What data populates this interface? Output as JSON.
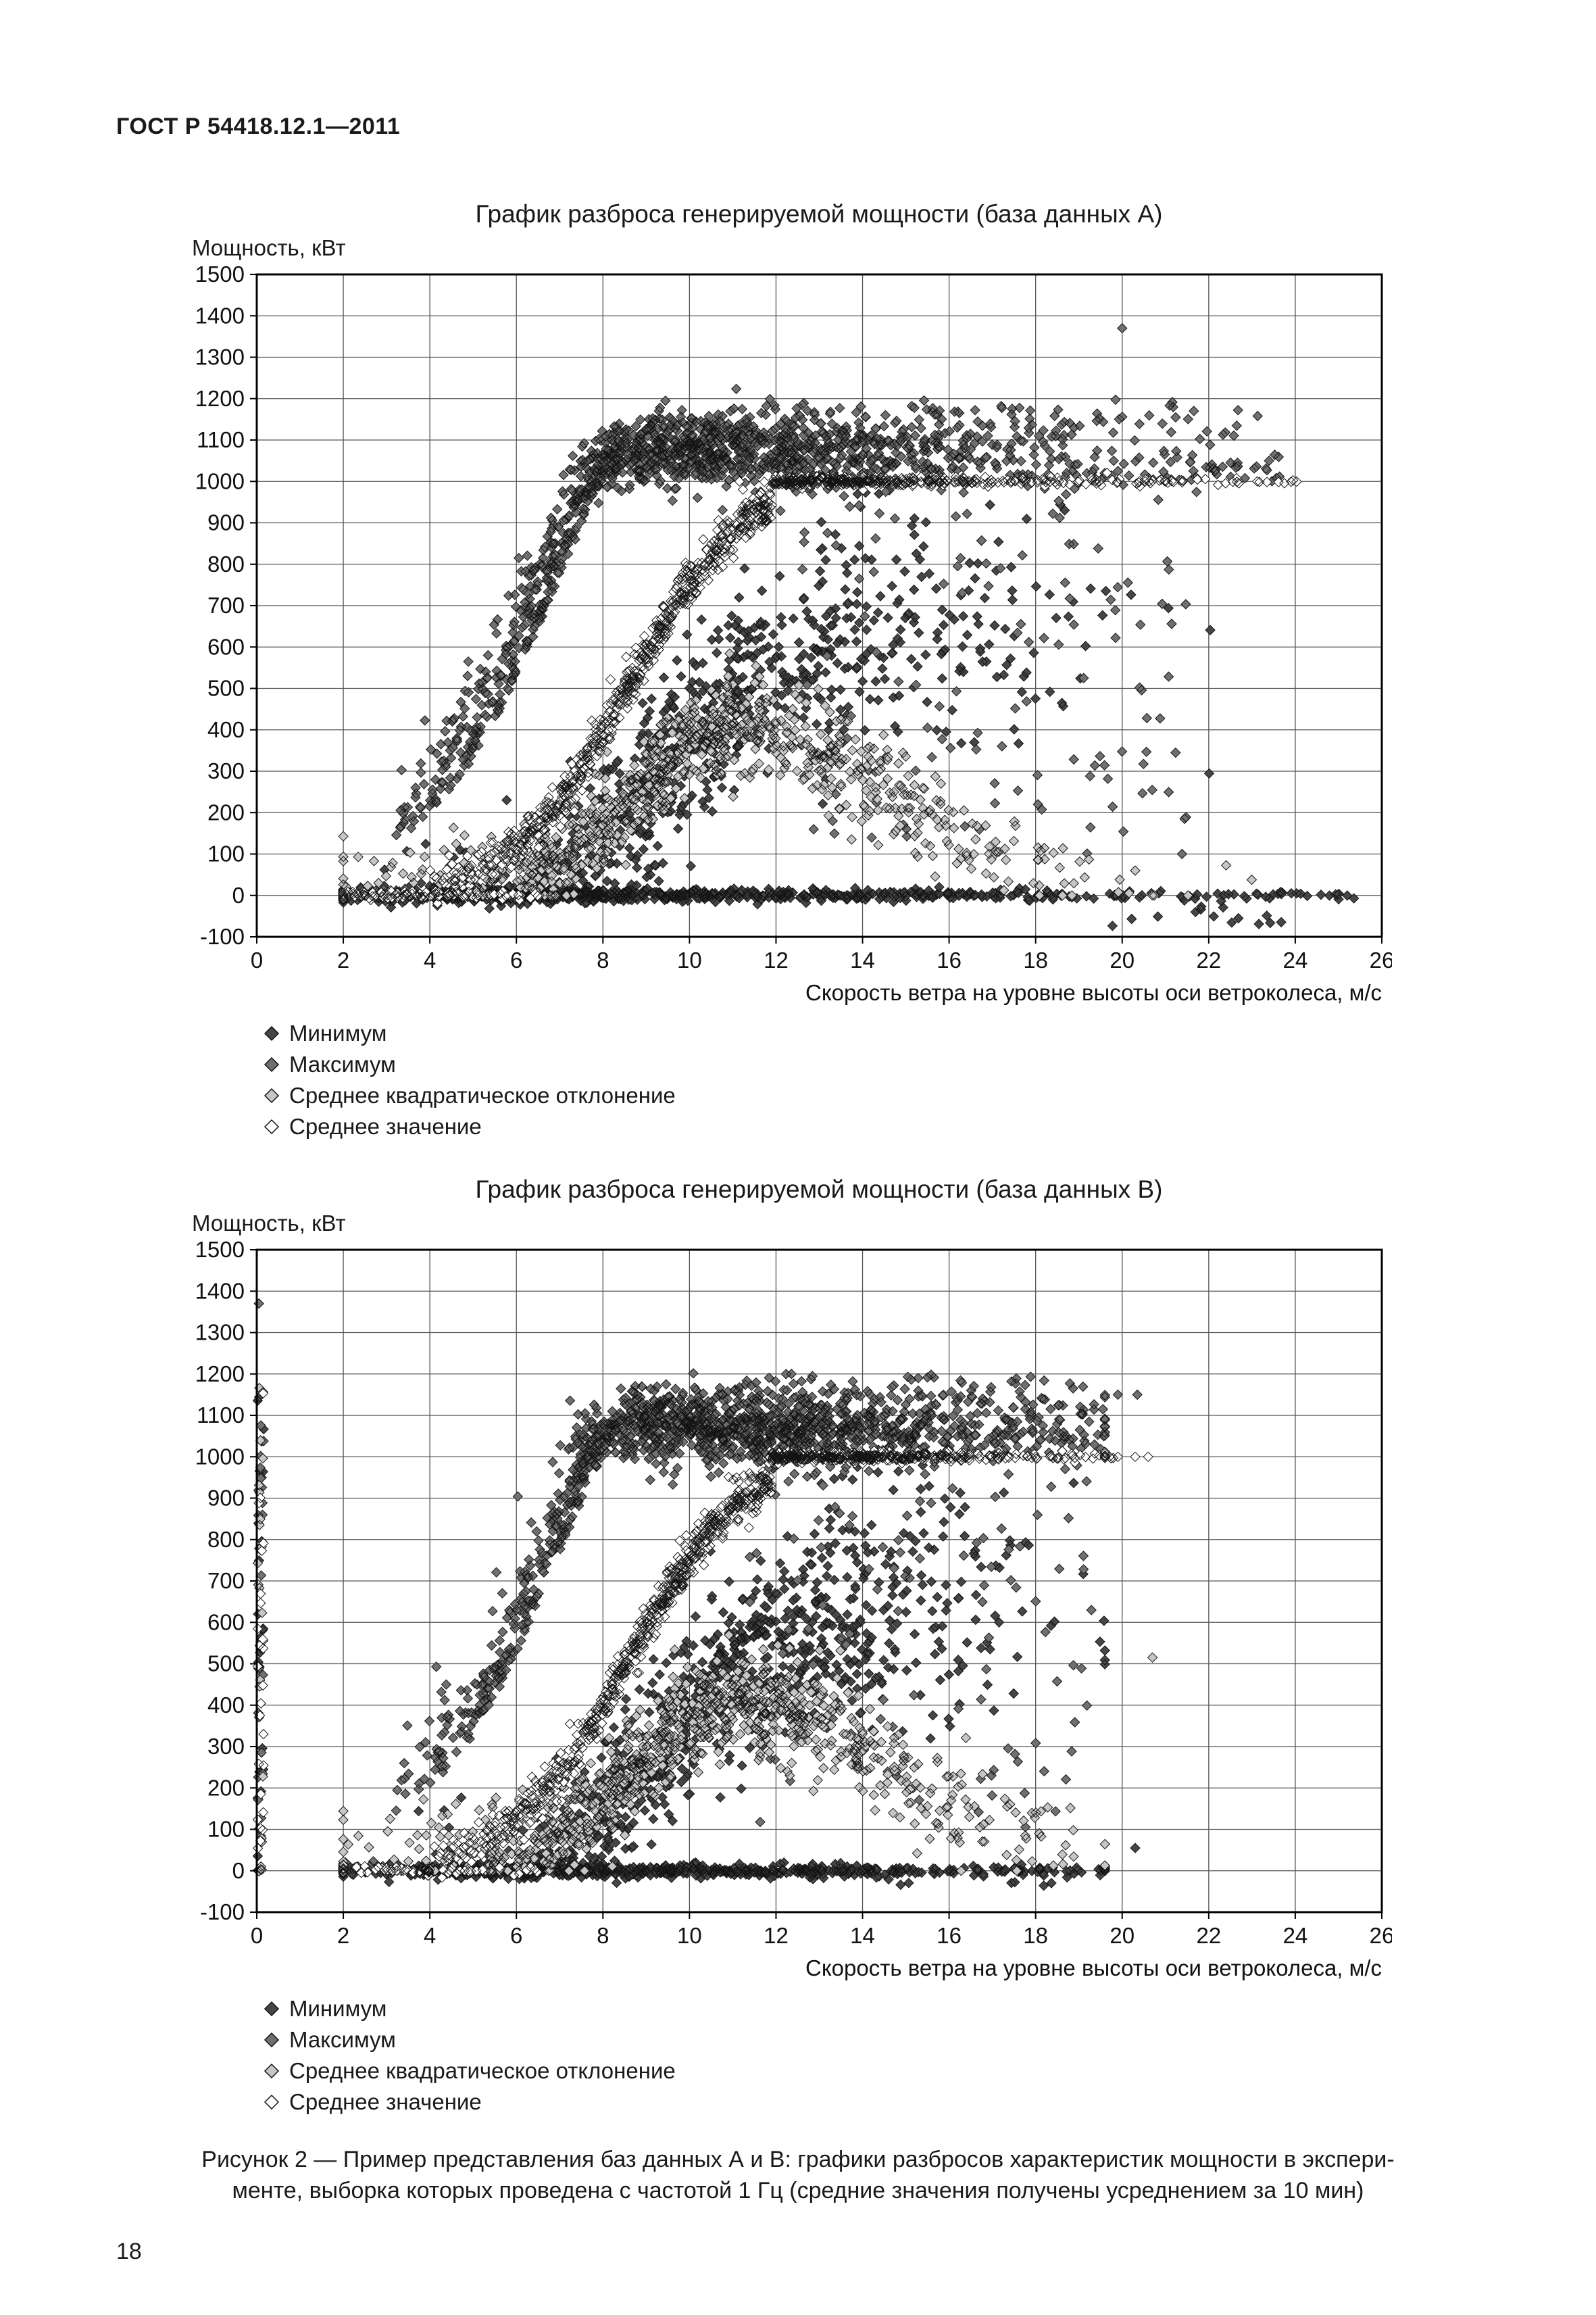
{
  "page": {
    "header": "ГОСТ Р 54418.12.1—2011",
    "page_number": "18",
    "caption": {
      "line1": "Рисунок 2 — Пример представления баз данных А и В: графики разбросов характеристик мощности в экспери-",
      "line2": "менте, выборка которых проведена с частотой 1 Гц (средние значения получены усреднением за 10 мин)"
    }
  },
  "chart_data": [
    {
      "type": "scatter",
      "title": "График разброса генерируемой мощности (база данных А)",
      "ylabel": "Мощность, кВт",
      "xlabel": "Скорость ветра на уровне высоты оси ветроколеса, м/с",
      "xlim": [
        0,
        26
      ],
      "ylim": [
        -100,
        1500
      ],
      "xticks": [
        0,
        2,
        4,
        6,
        8,
        10,
        12,
        14,
        16,
        18,
        20,
        22,
        24,
        26
      ],
      "yticks": [
        -100,
        0,
        100,
        200,
        300,
        400,
        500,
        600,
        700,
        800,
        900,
        1000,
        1100,
        1200,
        1300,
        1400,
        1500
      ],
      "grid": true,
      "legend_position": "below-left",
      "series": [
        {
          "key": "min",
          "name": "Минимум",
          "marker": "diamond",
          "fill": "#464646"
        },
        {
          "key": "max",
          "name": "Максимум",
          "marker": "diamond",
          "fill": "#707070"
        },
        {
          "key": "std",
          "name": "Среднее квадратическое отклонение",
          "marker": "diamond",
          "fill": "#c6c6c6"
        },
        {
          "key": "mean",
          "name": "Среднее значение",
          "marker": "diamond",
          "fill": "#ffffff"
        }
      ],
      "synthesis": {
        "seed": 11,
        "v_min": 2.0,
        "v_max": 25.6,
        "rated_power": 1000,
        "mix": [
          {
            "mu": 8.2,
            "sd": 2.9,
            "w": 0.6
          },
          {
            "mu": 12.6,
            "sd": 3.4,
            "w": 0.4
          }
        ],
        "counts": {
          "min": 1250,
          "max": 1250,
          "std": 850,
          "mean": 950
        },
        "extras": {
          "rated_band": {
            "n": 130,
            "x0": 10.2,
            "x1": 23.8,
            "y0": 1000,
            "y1": 1068
          },
          "white_line": {
            "n": 75,
            "x0": 11.0,
            "x1": 24.2
          },
          "high_scatter": {
            "n": 95,
            "x0": 11.0,
            "x1": 23.3,
            "y0": 1080,
            "y1": 1200
          },
          "spray": {
            "n": 120,
            "x0": 12.5,
            "x1": 21.5,
            "y0": 100,
            "y1": 1000
          },
          "bottom_line": {
            "n": 170,
            "x0": 2.0,
            "x1": 25.5
          },
          "bottom_line_white": {
            "n": 40,
            "x0": 2.2,
            "x1": 6.5
          },
          "negative_tail": {
            "n": 14,
            "x0": 18.5,
            "x1": 23.8,
            "y0": -75,
            "y1": -25
          }
        },
        "zero_column": null,
        "outliers": [
          {
            "series": "max",
            "x": 20.0,
            "y": 1370
          }
        ]
      }
    },
    {
      "type": "scatter",
      "title": "График разброса генерируемой мощности (база данных В)",
      "ylabel": "Мощность, кВт",
      "xlabel": "Скорость ветра на уровне высоты оси ветроколеса, м/с",
      "xlim": [
        0,
        26
      ],
      "ylim": [
        -100,
        1500
      ],
      "xticks": [
        0,
        2,
        4,
        6,
        8,
        10,
        12,
        14,
        16,
        18,
        20,
        22,
        24,
        26
      ],
      "yticks": [
        -100,
        0,
        100,
        200,
        300,
        400,
        500,
        600,
        700,
        800,
        900,
        1000,
        1100,
        1200,
        1300,
        1400,
        1500
      ],
      "grid": true,
      "legend_position": "below-left",
      "series": [
        {
          "key": "min",
          "name": "Минимум",
          "marker": "diamond",
          "fill": "#464646"
        },
        {
          "key": "max",
          "name": "Максимум",
          "marker": "diamond",
          "fill": "#707070"
        },
        {
          "key": "std",
          "name": "Среднее квадратическое отклонение",
          "marker": "diamond",
          "fill": "#c6c6c6"
        },
        {
          "key": "mean",
          "name": "Среднее значение",
          "marker": "diamond",
          "fill": "#ffffff"
        }
      ],
      "synthesis": {
        "seed": 77,
        "v_min": 2.0,
        "v_max": 19.6,
        "rated_power": 1000,
        "mix": [
          {
            "mu": 8.8,
            "sd": 2.9,
            "w": 0.62
          },
          {
            "mu": 12.8,
            "sd": 2.9,
            "w": 0.38
          }
        ],
        "counts": {
          "min": 1250,
          "max": 1250,
          "std": 850,
          "mean": 950
        },
        "extras": {
          "rated_band": {
            "n": 115,
            "x0": 11.2,
            "x1": 19.6,
            "y0": 1000,
            "y1": 1068
          },
          "white_line": {
            "n": 60,
            "x0": 11.4,
            "x1": 19.8
          },
          "high_scatter": {
            "n": 85,
            "x0": 11.3,
            "x1": 19.5,
            "y0": 1080,
            "y1": 1200
          },
          "spray": {
            "n": 115,
            "x0": 11.3,
            "x1": 19.3,
            "y0": 100,
            "y1": 1000
          },
          "bottom_line": {
            "n": 150,
            "x0": 2.0,
            "x1": 19.6
          },
          "bottom_line_white": {
            "n": 35,
            "x0": 2.2,
            "x1": 6.5
          },
          "negative_tail": {
            "n": 8,
            "x0": 14.0,
            "x1": 19.0,
            "y0": -45,
            "y1": -15
          }
        },
        "zero_column": {
          "n": 100,
          "y_max": 1215
        },
        "outliers": [
          {
            "series": "max",
            "x": 0.05,
            "y": 1370
          },
          {
            "series": "std",
            "x": 20.7,
            "y": 515
          },
          {
            "series": "min",
            "x": 20.3,
            "y": 55
          },
          {
            "series": "max",
            "x": 19.9,
            "y": 1150
          },
          {
            "series": "max",
            "x": 20.35,
            "y": 1150
          },
          {
            "series": "mean",
            "x": 19.9,
            "y": 1000
          },
          {
            "series": "mean",
            "x": 20.3,
            "y": 1000
          },
          {
            "series": "mean",
            "x": 20.6,
            "y": 1000
          }
        ]
      }
    }
  ]
}
